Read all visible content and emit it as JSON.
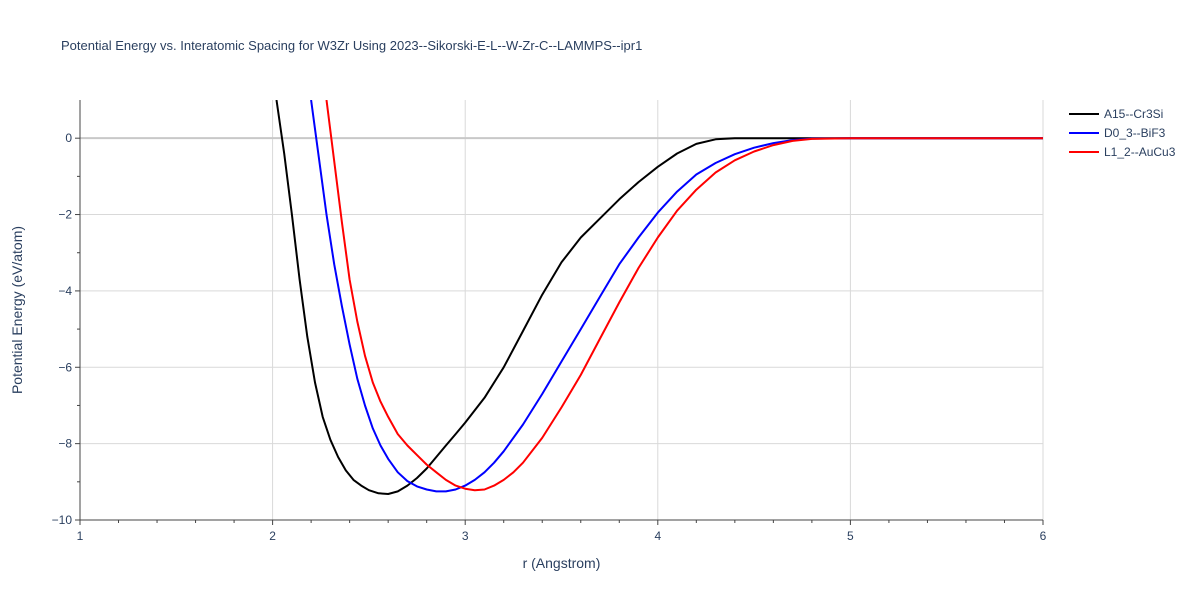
{
  "chart_data": {
    "type": "line",
    "title": "Potential Energy vs. Interatomic Spacing for W3Zr Using 2023--Sikorski-E-L--W-Zr-C--LAMMPS--ipr1",
    "xlabel": "r (Angstrom)",
    "ylabel": "Potential Energy (eV/atom)",
    "xlim": [
      1,
      6
    ],
    "ylim": [
      -10,
      1
    ],
    "x_ticks": [
      1,
      2,
      3,
      4,
      5,
      6
    ],
    "x_tick_labels": [
      "1",
      "2",
      "3",
      "4",
      "5",
      "6"
    ],
    "y_ticks": [
      -10,
      -8,
      -6,
      -4,
      -2,
      0
    ],
    "y_tick_labels": [
      "−10",
      "−8",
      "−6",
      "−4",
      "−2",
      "0"
    ],
    "grid": true,
    "legend_position": "top-right",
    "series": [
      {
        "name": "A15--Cr3Si",
        "color": "#000000",
        "x": [
          2.02,
          2.06,
          2.1,
          2.14,
          2.18,
          2.22,
          2.26,
          2.3,
          2.34,
          2.38,
          2.42,
          2.46,
          2.5,
          2.55,
          2.6,
          2.65,
          2.7,
          2.75,
          2.8,
          2.85,
          2.9,
          2.95,
          3.0,
          3.1,
          3.2,
          3.3,
          3.4,
          3.5,
          3.6,
          3.7,
          3.8,
          3.9,
          4.0,
          4.1,
          4.2,
          4.3,
          4.4,
          4.6,
          4.8,
          5.0,
          5.5,
          6.0
        ],
        "y": [
          1.0,
          -0.4,
          -2.0,
          -3.7,
          -5.2,
          -6.4,
          -7.3,
          -7.9,
          -8.35,
          -8.7,
          -8.95,
          -9.1,
          -9.22,
          -9.3,
          -9.32,
          -9.25,
          -9.1,
          -8.9,
          -8.65,
          -8.35,
          -8.05,
          -7.75,
          -7.45,
          -6.8,
          -6.0,
          -5.05,
          -4.1,
          -3.25,
          -2.6,
          -2.1,
          -1.6,
          -1.15,
          -0.75,
          -0.4,
          -0.15,
          -0.03,
          0.0,
          0.0,
          0.0,
          0.0,
          0.0,
          0.0
        ]
      },
      {
        "name": "D0_3--BiF3",
        "color": "#0000ff",
        "x": [
          2.2,
          2.24,
          2.28,
          2.32,
          2.36,
          2.4,
          2.44,
          2.48,
          2.52,
          2.56,
          2.6,
          2.65,
          2.7,
          2.75,
          2.8,
          2.85,
          2.9,
          2.95,
          3.0,
          3.05,
          3.1,
          3.15,
          3.2,
          3.3,
          3.4,
          3.5,
          3.6,
          3.7,
          3.8,
          3.9,
          4.0,
          4.1,
          4.2,
          4.3,
          4.4,
          4.5,
          4.6,
          4.7,
          4.8,
          5.0,
          5.5,
          6.0
        ],
        "y": [
          1.0,
          -0.5,
          -2.0,
          -3.3,
          -4.4,
          -5.4,
          -6.3,
          -7.0,
          -7.6,
          -8.05,
          -8.4,
          -8.75,
          -8.98,
          -9.12,
          -9.2,
          -9.25,
          -9.25,
          -9.2,
          -9.1,
          -8.95,
          -8.75,
          -8.5,
          -8.2,
          -7.5,
          -6.7,
          -5.85,
          -5.0,
          -4.15,
          -3.3,
          -2.6,
          -1.95,
          -1.4,
          -0.95,
          -0.65,
          -0.42,
          -0.25,
          -0.13,
          -0.05,
          -0.01,
          0.0,
          0.0,
          0.0
        ]
      },
      {
        "name": "L1_2--AuCu3",
        "color": "#ff0000",
        "x": [
          2.28,
          2.32,
          2.36,
          2.4,
          2.44,
          2.48,
          2.52,
          2.56,
          2.6,
          2.65,
          2.7,
          2.75,
          2.8,
          2.85,
          2.9,
          2.95,
          3.0,
          3.05,
          3.1,
          3.15,
          3.2,
          3.25,
          3.3,
          3.4,
          3.5,
          3.6,
          3.7,
          3.8,
          3.9,
          4.0,
          4.1,
          4.2,
          4.3,
          4.4,
          4.5,
          4.6,
          4.7,
          4.8,
          5.0,
          5.5,
          6.0
        ],
        "y": [
          1.0,
          -0.6,
          -2.2,
          -3.7,
          -4.8,
          -5.7,
          -6.4,
          -6.9,
          -7.3,
          -7.75,
          -8.05,
          -8.3,
          -8.55,
          -8.75,
          -8.95,
          -9.1,
          -9.18,
          -9.22,
          -9.2,
          -9.1,
          -8.95,
          -8.75,
          -8.5,
          -7.85,
          -7.05,
          -6.2,
          -5.25,
          -4.3,
          -3.4,
          -2.6,
          -1.9,
          -1.35,
          -0.9,
          -0.58,
          -0.35,
          -0.18,
          -0.07,
          -0.02,
          0.0,
          0.0,
          0.0
        ]
      }
    ]
  }
}
